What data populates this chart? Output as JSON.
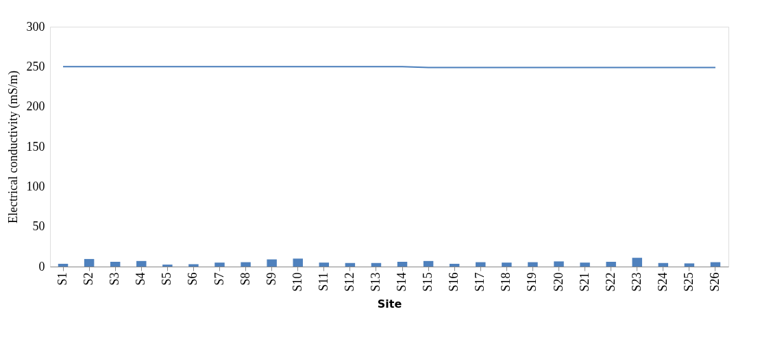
{
  "chart_data": {
    "type": "bar",
    "xlabel": "Site",
    "ylabel": "Electrical conductivity  (mS/m)",
    "categories": [
      "S1",
      "S2",
      "S3",
      "S4",
      "S5",
      "S6",
      "S7",
      "S8",
      "S9",
      "S10",
      "S11",
      "S12",
      "S13",
      "S14",
      "S15",
      "S16",
      "S17",
      "S18",
      "S19",
      "S20",
      "S21",
      "S22",
      "S23",
      "S24",
      "S25",
      "S26"
    ],
    "series": [
      {
        "color": "#4f81bd",
        "values": [
          3.5,
          9.5,
          6,
          7,
          2.5,
          3,
          5,
          5.5,
          9,
          10,
          5,
          4.5,
          4.5,
          6,
          7,
          3.5,
          5.5,
          5,
          5.5,
          6.5,
          5,
          6,
          11,
          4.5,
          4,
          5.5
        ]
      },
      {
        "type": "line",
        "color": "#4a7ebb",
        "values": [
          250,
          250,
          250,
          250,
          250,
          250,
          250,
          250,
          250,
          250,
          250,
          250,
          250,
          250,
          249,
          249,
          249,
          249,
          249,
          249,
          249,
          249,
          249,
          249,
          249,
          249
        ]
      }
    ],
    "ylim": [
      0,
      300
    ],
    "yticks": [
      0,
      50,
      100,
      150,
      200,
      250,
      300
    ],
    "grid": false
  }
}
